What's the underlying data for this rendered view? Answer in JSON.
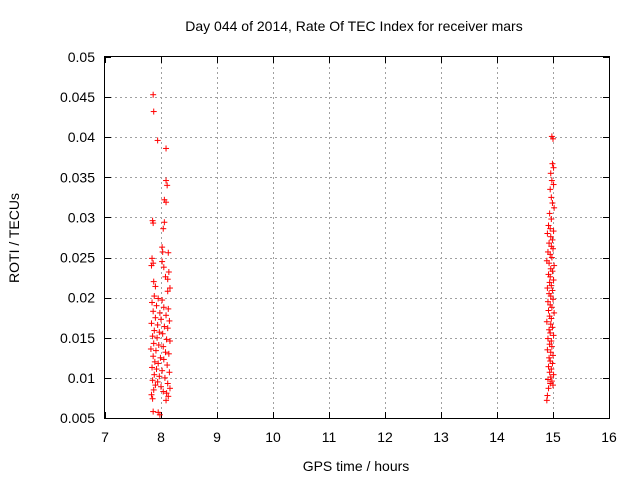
{
  "chart_data": {
    "type": "scatter",
    "title": "Day 044 of 2014, Rate Of TEC Index for receiver mars",
    "xlabel": "GPS time / hours",
    "ylabel": "ROTI / TECUs",
    "xlim": [
      7,
      16
    ],
    "ylim": [
      0.005,
      0.05
    ],
    "xticks": [
      7,
      8,
      9,
      10,
      11,
      12,
      13,
      14,
      15,
      16
    ],
    "yticks": [
      0.005,
      0.01,
      0.015,
      0.02,
      0.025,
      0.03,
      0.035,
      0.04,
      0.045,
      0.05
    ],
    "xtick_labels": [
      "7",
      "8",
      "9",
      "10",
      "11",
      "12",
      "13",
      "14",
      "15",
      "16"
    ],
    "ytick_labels": [
      "0.005",
      "0.01",
      "0.015",
      "0.02",
      "0.025",
      "0.03",
      "0.035",
      "0.04",
      "0.045",
      "0.05"
    ],
    "grid": true,
    "marker": "+",
    "series": [
      {
        "name": "ROTI",
        "color": "#ff0000",
        "points": [
          [
            7.86,
            0.0453
          ],
          [
            7.87,
            0.0432
          ],
          [
            7.94,
            0.0396
          ],
          [
            8.09,
            0.0386
          ],
          [
            8.09,
            0.0346
          ],
          [
            8.11,
            0.034
          ],
          [
            8.06,
            0.0322
          ],
          [
            8.09,
            0.0319
          ],
          [
            7.85,
            0.0296
          ],
          [
            7.86,
            0.0293
          ],
          [
            8.06,
            0.0294
          ],
          [
            8.04,
            0.0286
          ],
          [
            8.02,
            0.0263
          ],
          [
            8.03,
            0.0257
          ],
          [
            8.13,
            0.0256
          ],
          [
            7.84,
            0.0249
          ],
          [
            7.86,
            0.0243
          ],
          [
            7.83,
            0.024
          ],
          [
            8.02,
            0.0245
          ],
          [
            8.05,
            0.0238
          ],
          [
            8.14,
            0.0232
          ],
          [
            8.08,
            0.0226
          ],
          [
            8.12,
            0.0223
          ],
          [
            7.87,
            0.022
          ],
          [
            7.9,
            0.0214
          ],
          [
            8.16,
            0.0212
          ],
          [
            8.12,
            0.0208
          ],
          [
            7.88,
            0.0202
          ],
          [
            7.95,
            0.0199
          ],
          [
            8.02,
            0.0197
          ],
          [
            7.84,
            0.0194
          ],
          [
            7.92,
            0.019
          ],
          [
            8.05,
            0.0188
          ],
          [
            8.13,
            0.0186
          ],
          [
            7.86,
            0.0183
          ],
          [
            7.98,
            0.0181
          ],
          [
            8.09,
            0.0178
          ],
          [
            7.9,
            0.0175
          ],
          [
            8.0,
            0.0173
          ],
          [
            8.15,
            0.0171
          ],
          [
            7.83,
            0.0168
          ],
          [
            7.94,
            0.0166
          ],
          [
            8.06,
            0.0164
          ],
          [
            8.12,
            0.0162
          ],
          [
            7.88,
            0.0159
          ],
          [
            7.97,
            0.0157
          ],
          [
            8.03,
            0.0155
          ],
          [
            7.85,
            0.0152
          ],
          [
            7.93,
            0.015
          ],
          [
            8.1,
            0.0148
          ],
          [
            8.16,
            0.0146
          ],
          [
            7.87,
            0.0143
          ],
          [
            7.96,
            0.0141
          ],
          [
            8.04,
            0.0139
          ],
          [
            7.82,
            0.0136
          ],
          [
            7.91,
            0.0134
          ],
          [
            8.08,
            0.0132
          ],
          [
            8.14,
            0.013
          ],
          [
            7.86,
            0.0127
          ],
          [
            7.99,
            0.0125
          ],
          [
            8.05,
            0.0123
          ],
          [
            7.89,
            0.012
          ],
          [
            7.95,
            0.0118
          ],
          [
            8.11,
            0.0116
          ],
          [
            7.84,
            0.0113
          ],
          [
            7.92,
            0.0111
          ],
          [
            8.02,
            0.0109
          ],
          [
            8.15,
            0.0107
          ],
          [
            7.88,
            0.0104
          ],
          [
            7.97,
            0.0102
          ],
          [
            8.07,
            0.01
          ],
          [
            7.85,
            0.0097
          ],
          [
            7.94,
            0.0095
          ],
          [
            8.12,
            0.0093
          ],
          [
            7.9,
            0.0091
          ],
          [
            8.0,
            0.0089
          ],
          [
            8.16,
            0.0087
          ],
          [
            7.87,
            0.0085
          ],
          [
            8.04,
            0.0083
          ],
          [
            8.1,
            0.0081
          ],
          [
            7.83,
            0.0079
          ],
          [
            8.13,
            0.0077
          ],
          [
            7.85,
            0.0074
          ],
          [
            8.09,
            0.0072
          ],
          [
            7.86,
            0.0058
          ],
          [
            7.95,
            0.0057
          ],
          [
            7.98,
            0.0054
          ],
          [
            14.98,
            0.0401
          ],
          [
            15.0,
            0.0398
          ],
          [
            14.99,
            0.0367
          ],
          [
            15.01,
            0.0362
          ],
          [
            14.96,
            0.0355
          ],
          [
            14.98,
            0.0346
          ],
          [
            15.01,
            0.0341
          ],
          [
            14.95,
            0.0335
          ],
          [
            14.97,
            0.0325
          ],
          [
            14.99,
            0.0318
          ],
          [
            15.02,
            0.0312
          ],
          [
            14.94,
            0.0305
          ],
          [
            14.97,
            0.0298
          ],
          [
            14.92,
            0.029
          ],
          [
            14.95,
            0.0286
          ],
          [
            15.01,
            0.0283
          ],
          [
            14.9,
            0.028
          ],
          [
            14.96,
            0.0276
          ],
          [
            14.99,
            0.0272
          ],
          [
            14.93,
            0.0268
          ],
          [
            14.97,
            0.0264
          ],
          [
            15.0,
            0.0261
          ],
          [
            14.91,
            0.0257
          ],
          [
            14.95,
            0.0254
          ],
          [
            14.98,
            0.025
          ],
          [
            14.89,
            0.0246
          ],
          [
            14.93,
            0.0243
          ],
          [
            15.02,
            0.024
          ],
          [
            14.96,
            0.0236
          ],
          [
            14.99,
            0.0233
          ],
          [
            14.92,
            0.0229
          ],
          [
            14.95,
            0.0226
          ],
          [
            15.01,
            0.0222
          ],
          [
            14.94,
            0.0219
          ],
          [
            14.97,
            0.0215
          ],
          [
            14.9,
            0.0212
          ],
          [
            14.99,
            0.0209
          ],
          [
            14.93,
            0.0205
          ],
          [
            14.96,
            0.0202
          ],
          [
            15.0,
            0.0198
          ],
          [
            14.91,
            0.0195
          ],
          [
            14.95,
            0.0191
          ],
          [
            14.98,
            0.0188
          ],
          [
            14.92,
            0.0184
          ],
          [
            15.02,
            0.0181
          ],
          [
            14.94,
            0.0177
          ],
          [
            14.97,
            0.0174
          ],
          [
            14.89,
            0.017
          ],
          [
            14.96,
            0.0167
          ],
          [
            14.99,
            0.0163
          ],
          [
            14.93,
            0.016
          ],
          [
            14.95,
            0.0156
          ],
          [
            15.01,
            0.0153
          ],
          [
            14.91,
            0.0149
          ],
          [
            14.97,
            0.0146
          ],
          [
            14.94,
            0.0142
          ],
          [
            14.98,
            0.0139
          ],
          [
            14.9,
            0.0135
          ],
          [
            14.96,
            0.0132
          ],
          [
            15.0,
            0.0128
          ],
          [
            14.93,
            0.0125
          ],
          [
            14.95,
            0.0121
          ],
          [
            14.99,
            0.0118
          ],
          [
            14.92,
            0.0114
          ],
          [
            14.97,
            0.0111
          ],
          [
            14.94,
            0.0107
          ],
          [
            15.01,
            0.0104
          ],
          [
            14.96,
            0.0101
          ],
          [
            14.91,
            0.0098
          ],
          [
            14.98,
            0.0096
          ],
          [
            14.95,
            0.0093
          ],
          [
            15.0,
            0.0091
          ],
          [
            14.92,
            0.0087
          ],
          [
            14.9,
            0.0078
          ],
          [
            14.89,
            0.0072
          ]
        ]
      }
    ]
  }
}
